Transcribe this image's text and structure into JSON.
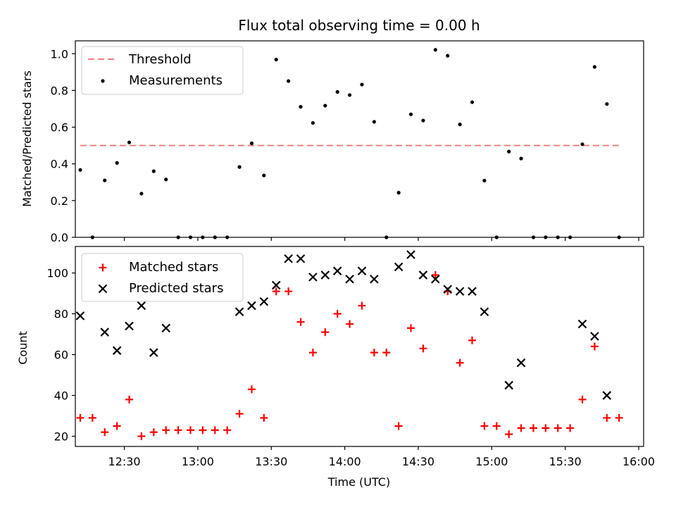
{
  "chart_data": [
    {
      "type": "scatter",
      "title": "Flux total observing time = 0.00 h",
      "xlabel": "",
      "ylabel": "Matched/Predicted stars",
      "ylim": [
        0,
        1.07
      ],
      "yticks": [
        "0.0",
        "0.2",
        "0.4",
        "0.6",
        "0.8",
        "1.0"
      ],
      "grid": false,
      "legend_position": "upper-left",
      "threshold": {
        "name": "Threshold",
        "value": 0.5,
        "color": "#f08080"
      },
      "series": [
        {
          "name": "Measurements",
          "color": "#000000",
          "marker": "dot",
          "x": [
            "12:12",
            "12:17",
            "12:22",
            "12:27",
            "12:32",
            "12:37",
            "12:42",
            "12:47",
            "12:52",
            "12:57",
            "13:02",
            "13:07",
            "13:12",
            "13:17",
            "13:22",
            "13:27",
            "13:32",
            "13:37",
            "13:42",
            "13:47",
            "13:52",
            "13:57",
            "14:02",
            "14:07",
            "14:12",
            "14:17",
            "14:22",
            "14:27",
            "14:32",
            "14:37",
            "14:42",
            "14:47",
            "14:52",
            "14:57",
            "15:02",
            "15:07",
            "15:12",
            "15:17",
            "15:22",
            "15:27",
            "15:32",
            "15:37",
            "15:42",
            "15:47",
            "15:52"
          ],
          "y": [
            0.367,
            0.0,
            0.31,
            0.405,
            0.517,
            0.238,
            0.36,
            0.315,
            0.0,
            0.0,
            0.0,
            0.0,
            0.0,
            0.383,
            0.512,
            0.337,
            0.968,
            0.851,
            0.711,
            0.623,
            0.717,
            0.792,
            0.775,
            0.832,
            0.629,
            0.0,
            0.243,
            0.67,
            0.636,
            1.021,
            0.989,
            0.615,
            0.736,
            0.309,
            0.0,
            0.467,
            0.429,
            0.0,
            0.0,
            0.0,
            0.0,
            0.507,
            0.928,
            0.726,
            0.0
          ]
        }
      ]
    },
    {
      "type": "scatter",
      "title": "",
      "xlabel": "Time (UTC)",
      "ylabel": "Count",
      "ylim": [
        15,
        113
      ],
      "yticks": [
        "20",
        "40",
        "60",
        "80",
        "100"
      ],
      "xticks": [
        "12:30",
        "13:00",
        "13:30",
        "14:00",
        "14:30",
        "15:00",
        "15:30",
        "16:00"
      ],
      "xlim": [
        "12:10",
        "16:02"
      ],
      "grid": false,
      "legend_position": "upper-left",
      "series": [
        {
          "name": "Matched stars",
          "color": "#ff0000",
          "marker": "plus",
          "x": [
            "12:12",
            "12:17",
            "12:22",
            "12:27",
            "12:32",
            "12:37",
            "12:42",
            "12:47",
            "12:52",
            "12:57",
            "13:02",
            "13:07",
            "13:12",
            "13:17",
            "13:22",
            "13:27",
            "13:32",
            "13:37",
            "13:42",
            "13:47",
            "13:52",
            "13:57",
            "14:02",
            "14:07",
            "14:12",
            "14:17",
            "14:22",
            "14:27",
            "14:32",
            "14:37",
            "14:42",
            "14:47",
            "14:52",
            "14:57",
            "15:02",
            "15:07",
            "15:12",
            "15:17",
            "15:22",
            "15:27",
            "15:32",
            "15:37",
            "15:42",
            "15:47",
            "15:52"
          ],
          "y": [
            29,
            29,
            22,
            25,
            38,
            20,
            22,
            23,
            23,
            23,
            23,
            23,
            23,
            31,
            43,
            29,
            91,
            91,
            76,
            61,
            71,
            80,
            75,
            84,
            61,
            61,
            25,
            73,
            63,
            99,
            91,
            56,
            67,
            25,
            25,
            21,
            24,
            24,
            24,
            24,
            24,
            38,
            64,
            29,
            29
          ]
        },
        {
          "name": "Predicted stars",
          "color": "#000000",
          "marker": "x",
          "x": [
            "12:12",
            "12:22",
            "12:27",
            "12:32",
            "12:37",
            "12:42",
            "12:47",
            "13:17",
            "13:22",
            "13:27",
            "13:32",
            "13:37",
            "13:42",
            "13:47",
            "13:52",
            "13:57",
            "14:02",
            "14:07",
            "14:12",
            "14:22",
            "14:27",
            "14:32",
            "14:37",
            "14:42",
            "14:47",
            "14:52",
            "14:57",
            "15:07",
            "15:12",
            "15:37",
            "15:42",
            "15:47"
          ],
          "y": [
            79,
            71,
            62,
            74,
            84,
            61,
            73,
            81,
            84,
            86,
            94,
            107,
            107,
            98,
            99,
            101,
            97,
            101,
            97,
            103,
            109,
            99,
            97,
            92,
            91,
            91,
            81,
            45,
            56,
            75,
            69,
            40
          ]
        }
      ]
    }
  ]
}
